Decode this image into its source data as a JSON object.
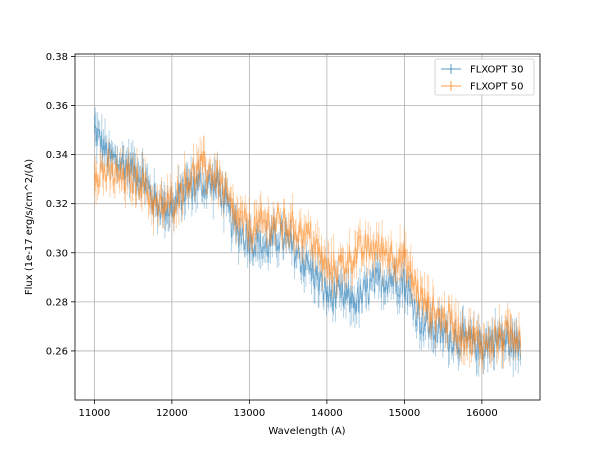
{
  "chart_data": {
    "type": "line",
    "title": "",
    "xlabel": "Wavelength (A)",
    "ylabel": "Flux (1e-17 erg/s/cm^2/(A)",
    "xlim": [
      10750,
      16750
    ],
    "ylim": [
      0.24,
      0.381
    ],
    "x_ticks": [
      11000,
      12000,
      13000,
      14000,
      15000,
      16000
    ],
    "y_ticks": [
      0.26,
      0.28,
      0.3,
      0.32,
      0.34,
      0.36,
      0.38
    ],
    "grid": true,
    "legend_position": "top-right",
    "series": [
      {
        "name": "FLXOPT 30",
        "color": "#1f77b4",
        "x": [
          11000,
          11200,
          11400,
          11600,
          11800,
          12000,
          12200,
          12400,
          12600,
          12800,
          13000,
          13200,
          13400,
          13600,
          13800,
          14000,
          14200,
          14400,
          14600,
          14800,
          15000,
          15200,
          15400,
          15600,
          15800,
          16000,
          16200,
          16500
        ],
        "y": [
          0.35,
          0.338,
          0.336,
          0.332,
          0.32,
          0.318,
          0.327,
          0.328,
          0.328,
          0.31,
          0.306,
          0.302,
          0.307,
          0.3,
          0.293,
          0.283,
          0.282,
          0.28,
          0.287,
          0.29,
          0.288,
          0.273,
          0.268,
          0.266,
          0.264,
          0.262,
          0.265,
          0.262
        ]
      },
      {
        "name": "FLXOPT 50",
        "color": "#ff7f0e",
        "x": [
          11000,
          11200,
          11400,
          11600,
          11800,
          12000,
          12200,
          12400,
          12600,
          12800,
          13000,
          13200,
          13400,
          13600,
          13800,
          14000,
          14200,
          14400,
          14600,
          14800,
          15000,
          15200,
          15400,
          15600,
          15800,
          16000,
          16200,
          16500
        ],
        "y": [
          0.334,
          0.332,
          0.33,
          0.33,
          0.318,
          0.32,
          0.33,
          0.335,
          0.33,
          0.315,
          0.31,
          0.312,
          0.312,
          0.31,
          0.306,
          0.293,
          0.295,
          0.3,
          0.302,
          0.3,
          0.297,
          0.282,
          0.275,
          0.272,
          0.266,
          0.263,
          0.265,
          0.268
        ]
      }
    ]
  }
}
